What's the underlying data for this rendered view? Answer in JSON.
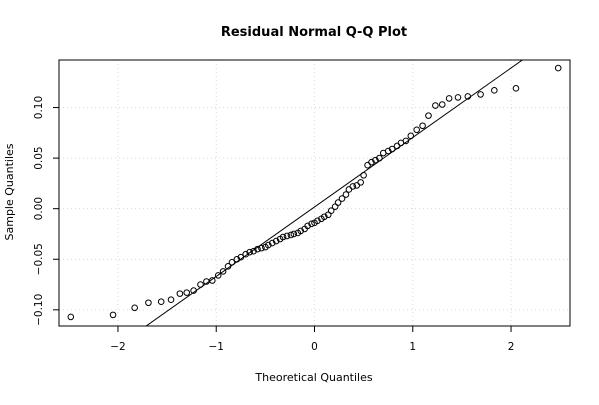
{
  "chart_data": {
    "type": "scatter",
    "title": "Residual Normal Q-Q Plot",
    "xlabel": "Theoretical Quantiles",
    "ylabel": "Sample Quantiles",
    "xlim": [
      -2.6,
      2.6
    ],
    "ylim": [
      -0.116,
      0.147
    ],
    "xticks": [
      -2,
      -1,
      0,
      1,
      2
    ],
    "xtick_labels": [
      "−2",
      "−1",
      "0",
      "1",
      "2"
    ],
    "yticks": [
      -0.1,
      -0.05,
      0.0,
      0.05,
      0.1
    ],
    "ytick_labels": [
      "−0.10",
      "−0.05",
      "0.00",
      "0.05",
      "0.10"
    ],
    "grid": true,
    "grid_color": "#d9d9d9",
    "point_color": "#000000",
    "point_marker": "open-circle",
    "reference_line": {
      "slope": 0.0687,
      "intercept": 0.0017,
      "color": "#000000"
    },
    "series": [
      {
        "x": [
          -2.48,
          -2.05,
          -1.83,
          -1.69,
          -1.56,
          -1.46,
          -1.37,
          -1.3,
          -1.23,
          -1.16,
          -1.1,
          -1.04,
          -0.98,
          -0.93,
          -0.88,
          -0.84,
          -0.79,
          -0.75,
          -0.7,
          -0.66,
          -0.62,
          -0.58,
          -0.54,
          -0.5,
          -0.47,
          -0.43,
          -0.39,
          -0.35,
          -0.32,
          -0.28,
          -0.24,
          -0.21,
          -0.17,
          -0.14,
          -0.1,
          -0.07,
          -0.03,
          0.0,
          0.03,
          0.07,
          0.1,
          0.14,
          0.17,
          0.21,
          0.24,
          0.28,
          0.32,
          0.35,
          0.39,
          0.43,
          0.47,
          0.5,
          0.54,
          0.58,
          0.62,
          0.66,
          0.7,
          0.75,
          0.79,
          0.84,
          0.88,
          0.93,
          0.98,
          1.04,
          1.1,
          1.16,
          1.23,
          1.3,
          1.37,
          1.46,
          1.56,
          1.69,
          1.83,
          2.05,
          2.48
        ],
        "y": [
          -0.107,
          -0.105,
          -0.098,
          -0.093,
          -0.092,
          -0.09,
          -0.084,
          -0.083,
          -0.081,
          -0.075,
          -0.072,
          -0.071,
          -0.066,
          -0.062,
          -0.057,
          -0.053,
          -0.05,
          -0.048,
          -0.045,
          -0.043,
          -0.042,
          -0.04,
          -0.039,
          -0.038,
          -0.036,
          -0.034,
          -0.032,
          -0.03,
          -0.028,
          -0.027,
          -0.026,
          -0.025,
          -0.024,
          -0.022,
          -0.02,
          -0.017,
          -0.015,
          -0.014,
          -0.012,
          -0.01,
          -0.008,
          -0.006,
          -0.002,
          0.002,
          0.006,
          0.01,
          0.014,
          0.019,
          0.022,
          0.023,
          0.026,
          0.033,
          0.043,
          0.046,
          0.048,
          0.05,
          0.055,
          0.057,
          0.059,
          0.062,
          0.065,
          0.067,
          0.072,
          0.078,
          0.082,
          0.092,
          0.102,
          0.103,
          0.109,
          0.11,
          0.111,
          0.113,
          0.117,
          0.119,
          0.139
        ]
      }
    ]
  }
}
